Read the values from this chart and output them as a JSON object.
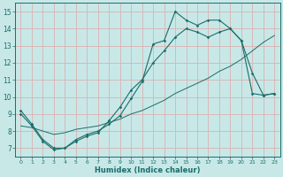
{
  "xlabel": "Humidex (Indice chaleur)",
  "background_color": "#c8e8e8",
  "grid_color": "#d8b8b8",
  "line_color": "#1a6e6a",
  "xlim": [
    -0.5,
    23.5
  ],
  "ylim": [
    6.5,
    15.5
  ],
  "xticks": [
    0,
    1,
    2,
    3,
    4,
    5,
    6,
    7,
    8,
    9,
    10,
    11,
    12,
    13,
    14,
    15,
    16,
    17,
    18,
    19,
    20,
    21,
    22,
    23
  ],
  "yticks": [
    7,
    8,
    9,
    10,
    11,
    12,
    13,
    14,
    15
  ],
  "line1_x": [
    0,
    1,
    2,
    3,
    4,
    5,
    6,
    7,
    8,
    9,
    10,
    11,
    12,
    13,
    14,
    15,
    16,
    17,
    18,
    19,
    20,
    21,
    22,
    23
  ],
  "line1_y": [
    9.2,
    8.4,
    7.5,
    7.0,
    7.0,
    7.5,
    7.8,
    8.0,
    8.4,
    8.9,
    9.9,
    10.9,
    13.1,
    13.3,
    15.0,
    14.5,
    14.2,
    14.5,
    14.5,
    14.0,
    13.3,
    11.4,
    10.1,
    10.2
  ],
  "line2_x": [
    0,
    1,
    2,
    3,
    4,
    5,
    6,
    7,
    8,
    9,
    10,
    11,
    12,
    13,
    14,
    15,
    16,
    17,
    18,
    19,
    20,
    21,
    22,
    23
  ],
  "line2_y": [
    9.0,
    8.3,
    7.4,
    6.9,
    7.0,
    7.4,
    7.7,
    7.9,
    8.6,
    9.4,
    10.4,
    11.0,
    12.0,
    12.7,
    13.5,
    14.0,
    13.8,
    13.5,
    13.8,
    14.0,
    13.3,
    10.2,
    10.1,
    10.2
  ],
  "line3_x": [
    0,
    1,
    2,
    3,
    4,
    5,
    6,
    7,
    8,
    9,
    10,
    11,
    12,
    13,
    14,
    15,
    16,
    17,
    18,
    19,
    20,
    21,
    22,
    23
  ],
  "line3_y": [
    8.3,
    8.2,
    8.0,
    7.8,
    7.9,
    8.1,
    8.2,
    8.3,
    8.5,
    8.7,
    9.0,
    9.2,
    9.5,
    9.8,
    10.2,
    10.5,
    10.8,
    11.1,
    11.5,
    11.8,
    12.2,
    12.7,
    13.2,
    13.6
  ]
}
